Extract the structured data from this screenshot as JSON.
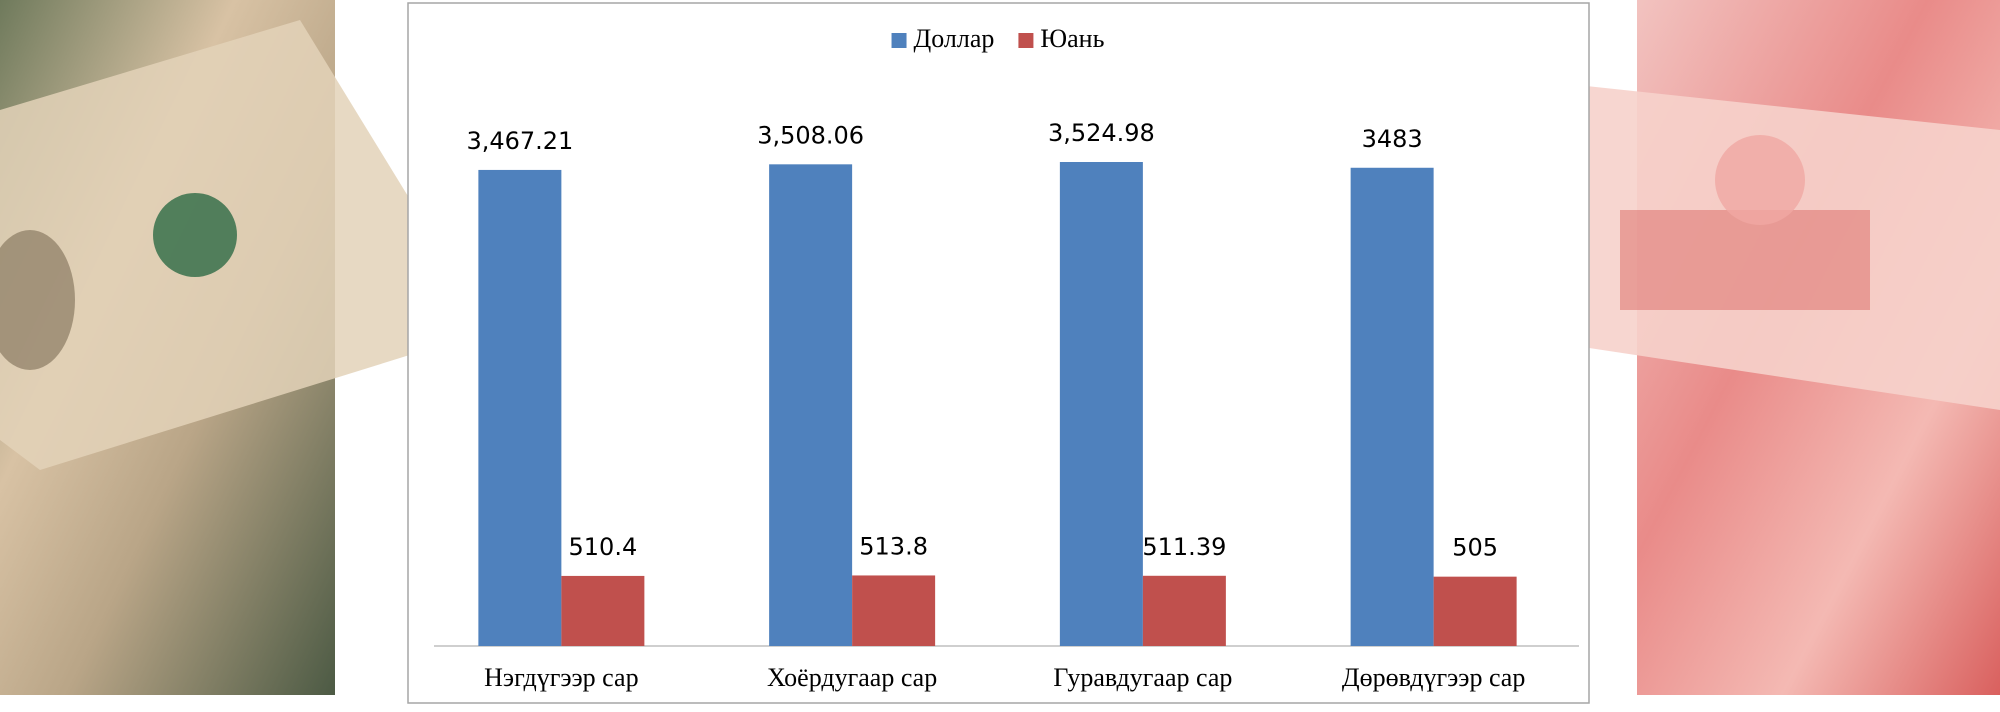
{
  "chart_data": {
    "type": "bar",
    "categories": [
      "Нэгдүгээр сар",
      "Хоёрдугаар сар",
      "Гуравдугаар сар",
      "Дөрөвдүгээр сар"
    ],
    "series": [
      {
        "name": "Доллар",
        "color": "#4f81bd",
        "values": [
          3467.21,
          3508.06,
          3524.98,
          3483
        ],
        "value_labels": [
          "3,467.21",
          "3,508.06",
          "3,524.98",
          "3483"
        ]
      },
      {
        "name": "Юань",
        "color": "#c0504d",
        "values": [
          510.4,
          513.8,
          511.39,
          505
        ]
      }
    ],
    "legend": "top"
  }
}
